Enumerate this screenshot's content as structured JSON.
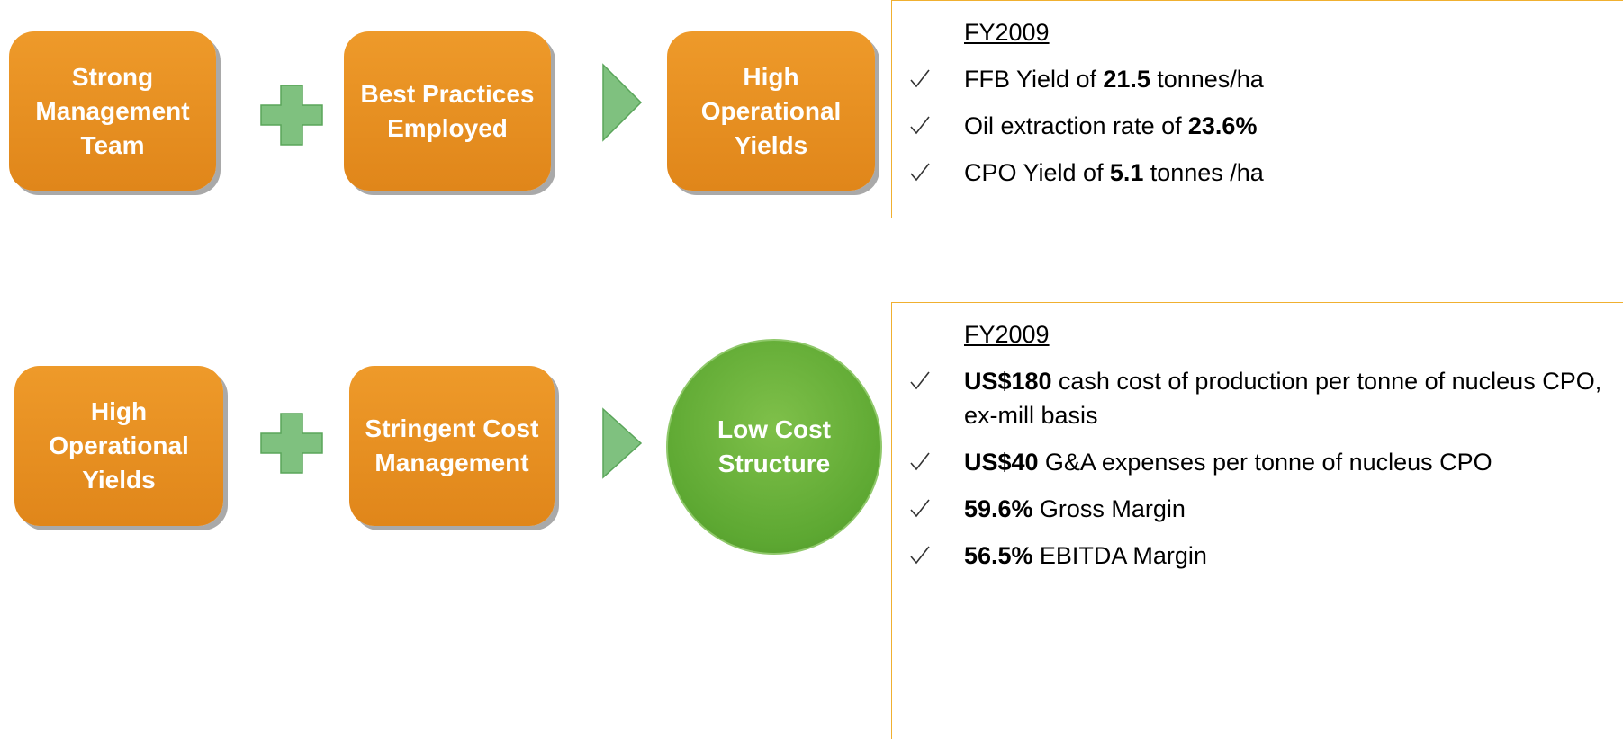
{
  "rows": [
    {
      "boxes": [
        "Strong Management Team",
        "Best Practices Employed"
      ],
      "result": "High Operational Yields",
      "callout": {
        "heading": "FY2009",
        "bullets": [
          [
            {
              "text": "FFB Yield of"
            },
            {
              "text": "21.5",
              "bold": true
            },
            {
              "text": "tonnes/ha"
            }
          ],
          [
            {
              "text": "Oil extraction rate of"
            },
            {
              "text": "23.6%",
              "bold": true
            }
          ],
          [
            {
              "text": "CPO Yield of"
            },
            {
              "text": "5.1",
              "bold": true
            },
            {
              "text": "tonnes /ha"
            }
          ]
        ]
      }
    },
    {
      "boxes": [
        "High Operational Yields",
        "Stringent Cost Management"
      ],
      "result": "Low Cost Structure",
      "callout": {
        "heading": "FY2009",
        "bullets": [
          [
            {
              "text": "US$180",
              "bold": true
            },
            {
              "text": "cash cost of production per tonne of nucleus CPO, ex-mill basis"
            }
          ],
          [
            {
              "text": "US$40",
              "bold": true
            },
            {
              "text": "G&A expenses per tonne of nucleus CPO"
            }
          ],
          [
            {
              "text": "59.6%",
              "bold": true
            },
            {
              "text": "Gross Margin"
            }
          ],
          [
            {
              "text": "56.5%",
              "bold": true
            },
            {
              "text": "EBITDA Margin"
            }
          ]
        ]
      }
    }
  ]
}
